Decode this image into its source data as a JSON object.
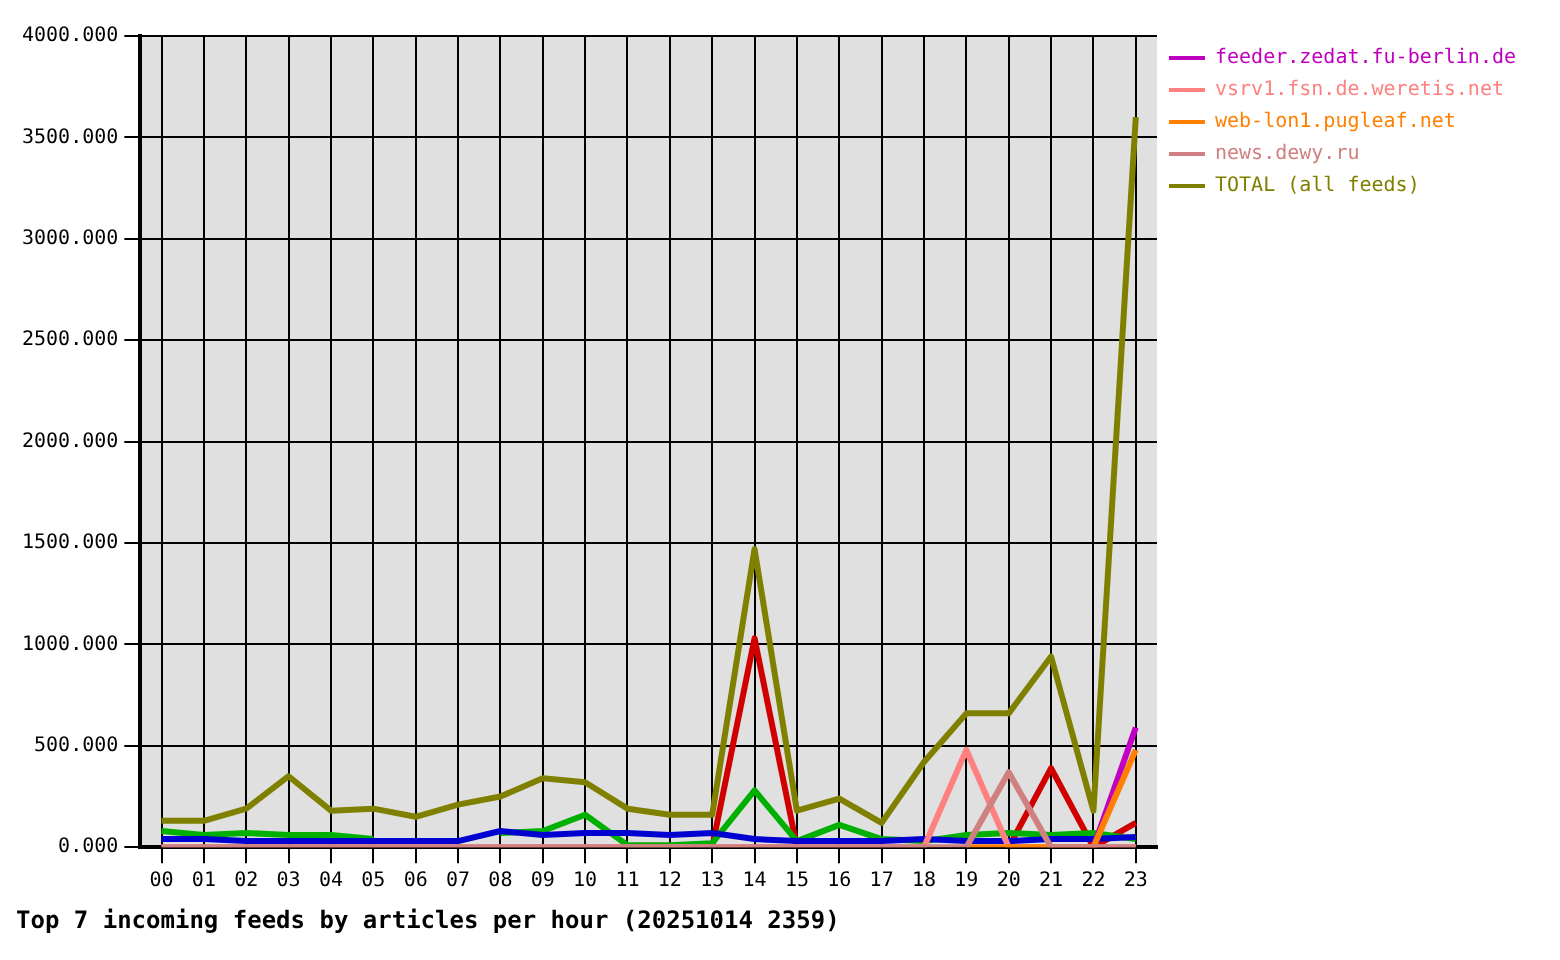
{
  "chart_data": {
    "type": "line",
    "title": "Top 7 incoming feeds by articles per hour (20251014 2359)",
    "categories": [
      "00",
      "01",
      "02",
      "03",
      "04",
      "05",
      "06",
      "07",
      "08",
      "09",
      "10",
      "11",
      "12",
      "13",
      "14",
      "15",
      "16",
      "17",
      "18",
      "19",
      "20",
      "21",
      "22",
      "23"
    ],
    "series": [
      {
        "color": "#d00000",
        "values": [
          null,
          null,
          null,
          null,
          null,
          null,
          null,
          null,
          null,
          null,
          null,
          null,
          null,
          0,
          1030,
          0,
          null,
          null,
          null,
          null,
          0,
          390,
          0,
          120
        ]
      },
      {
        "color": "#00b000",
        "values": [
          80,
          60,
          70,
          60,
          60,
          40,
          null,
          null,
          70,
          80,
          160,
          10,
          10,
          20,
          280,
          30,
          110,
          40,
          30,
          60,
          70,
          60,
          70,
          40
        ]
      },
      {
        "color": "#0000d0",
        "values": [
          40,
          40,
          30,
          30,
          30,
          30,
          30,
          30,
          80,
          60,
          70,
          70,
          60,
          70,
          40,
          30,
          30,
          30,
          40,
          30,
          30,
          40,
          40,
          50
        ]
      },
      {
        "name": "feeder.zedat.fu-berlin.de",
        "color": "#c000c0",
        "values": [
          null,
          null,
          null,
          null,
          null,
          null,
          null,
          null,
          null,
          null,
          null,
          null,
          null,
          null,
          null,
          null,
          null,
          null,
          null,
          null,
          null,
          null,
          0,
          590
        ]
      },
      {
        "name": "vsrv1.fsn.de.weretis.net",
        "color": "#ff8080",
        "values": [
          0,
          0,
          0,
          0,
          0,
          0,
          0,
          0,
          0,
          0,
          0,
          0,
          0,
          0,
          0,
          0,
          0,
          0,
          0,
          480,
          0,
          0,
          0,
          0
        ]
      },
      {
        "name": "web-lon1.pugleaf.net",
        "color": "#ff8000",
        "values": [
          null,
          null,
          null,
          null,
          null,
          null,
          null,
          null,
          null,
          null,
          null,
          null,
          null,
          null,
          null,
          null,
          null,
          null,
          null,
          0,
          0,
          0,
          0,
          480
        ]
      },
      {
        "name": "news.dewy.ru",
        "color": "#d08080",
        "values": [
          0,
          0,
          0,
          0,
          0,
          0,
          0,
          0,
          0,
          0,
          0,
          0,
          0,
          0,
          0,
          0,
          0,
          0,
          0,
          0,
          370,
          0,
          0,
          0
        ]
      },
      {
        "name": "TOTAL (all feeds)",
        "color": "#808000",
        "values": [
          130,
          130,
          190,
          350,
          180,
          190,
          150,
          210,
          250,
          340,
          320,
          190,
          160,
          160,
          1470,
          180,
          240,
          120,
          420,
          660,
          660,
          940,
          180,
          3600
        ]
      }
    ],
    "ylim": [
      0,
      4000
    ],
    "yticks": [
      {
        "value": 0,
        "label": "0.000"
      },
      {
        "value": 500,
        "label": "500.000"
      },
      {
        "value": 1000,
        "label": "1000.000"
      },
      {
        "value": 1500,
        "label": "1500.000"
      },
      {
        "value": 2000,
        "label": "2000.000"
      },
      {
        "value": 2500,
        "label": "2500.000"
      },
      {
        "value": 3000,
        "label": "3000.000"
      },
      {
        "value": 3500,
        "label": "3500.000"
      },
      {
        "value": 4000,
        "label": "4000.000"
      }
    ],
    "grid": true,
    "legend": "right"
  }
}
